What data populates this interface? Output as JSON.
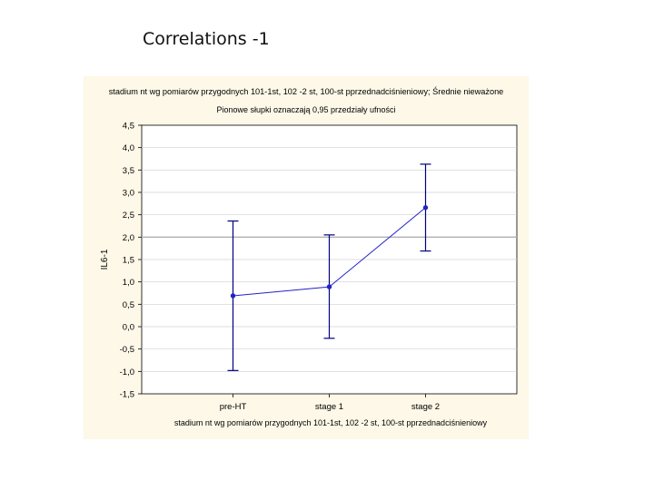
{
  "slide": {
    "title": "Correlations -1"
  },
  "chart_data": {
    "type": "line",
    "title": "stadium nt wg pomiarów przygodnych 101-1st, 102 -2 st, 100-st pprzednadciśnieniowy; Średnie nieważone",
    "subtitle": "Pionowe słupki oznaczają 0,95 przedziały ufności",
    "xlabel": "stadium nt wg pomiarów przygodnych 101-1st, 102 -2 st, 100-st pprzednadciśnieniowy",
    "ylabel": "IL6-1",
    "categories": [
      "pre-HT",
      "stage 1",
      "stage 2"
    ],
    "series": [
      {
        "values": [
          0.69,
          0.89,
          2.66
        ],
        "lower": [
          -0.98,
          -0.26,
          1.69
        ],
        "upper": [
          2.36,
          2.05,
          3.63
        ]
      }
    ],
    "ylim": [
      -1.5,
      4.5
    ],
    "yticks": [
      4.5,
      4.0,
      3.5,
      3.0,
      2.5,
      2.0,
      1.5,
      1.0,
      0.5,
      0.0,
      -0.5,
      -1.0,
      -1.5
    ],
    "ytick_labels": [
      "4,5",
      "4,0",
      "3,5",
      "3,0",
      "2,5",
      "2,0",
      "1,5",
      "1,0",
      "0,5",
      "0,0",
      "-0,5",
      "-1,0",
      "-1,5"
    ],
    "highlight_gridline": 2.0,
    "grid": true,
    "legend": "none",
    "colors": {
      "series": "#2222cc",
      "error_bar": "#000080",
      "panel_background": "#fdf8e8",
      "plot_background": "#ffffff",
      "gridline": "#d0d0d0"
    }
  }
}
